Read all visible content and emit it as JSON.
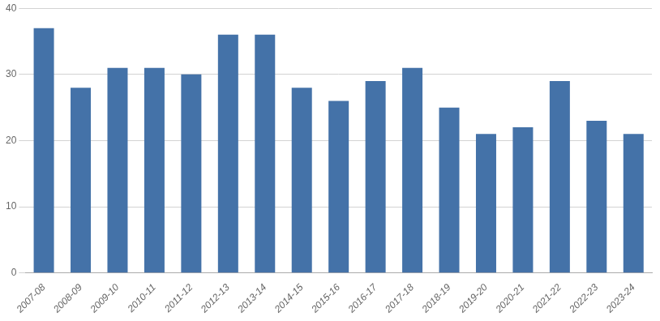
{
  "chart_data": {
    "type": "bar",
    "categories": [
      "2007-08",
      "2008-09",
      "2009-10",
      "2010-11",
      "2011-12",
      "2012-13",
      "2013-14",
      "2014-15",
      "2015-16",
      "2016-17",
      "2017-18",
      "2018-19",
      "2019-20",
      "2020-21",
      "2021-22",
      "2022-23",
      "2023-24"
    ],
    "values": [
      37,
      28,
      31,
      31,
      30,
      36,
      36,
      28,
      26,
      29,
      31,
      25,
      21,
      22,
      29,
      23,
      21
    ],
    "color": "#4472a8",
    "ylim": [
      0,
      40
    ],
    "yticks": [
      0,
      10,
      20,
      30,
      40
    ],
    "grid": true
  }
}
